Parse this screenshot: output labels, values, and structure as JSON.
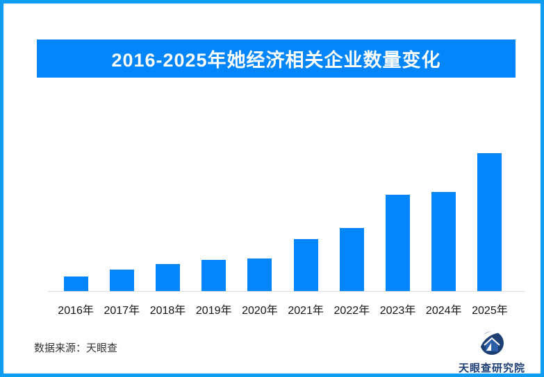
{
  "header": {
    "title": "2016-2025年她经济相关企业数量变化"
  },
  "chart_data": {
    "type": "bar",
    "title": "2016-2025年她经济相关企业数量变化",
    "categories": [
      "2016年",
      "2017年",
      "2018年",
      "2019年",
      "2020年",
      "2021年",
      "2022年",
      "2023年",
      "2024年",
      "2025年"
    ],
    "values": [
      11,
      16,
      20,
      23,
      24,
      38,
      46,
      70,
      72,
      100
    ],
    "values_basis": "relative estimate, no numeric axis shown; 2025 bar = 100",
    "xlabel": "",
    "ylabel": "",
    "ylim": [
      0,
      110
    ],
    "grid": false,
    "legend": false,
    "bar_color": "#0385fb",
    "source": "数据来源：天眼查"
  },
  "footer": {
    "source_label": "数据来源：天眼查"
  },
  "branding": {
    "logo_text": "天眼查研究院",
    "logo_icon": "tianyancha-eye-house-logo"
  },
  "colors": {
    "accent": "#0385fb",
    "border": "#0f9cf4",
    "logo_navy": "#1e3f74",
    "logo_medium_blue": "#2d5fa8",
    "axis_line": "#dcdcdc"
  }
}
